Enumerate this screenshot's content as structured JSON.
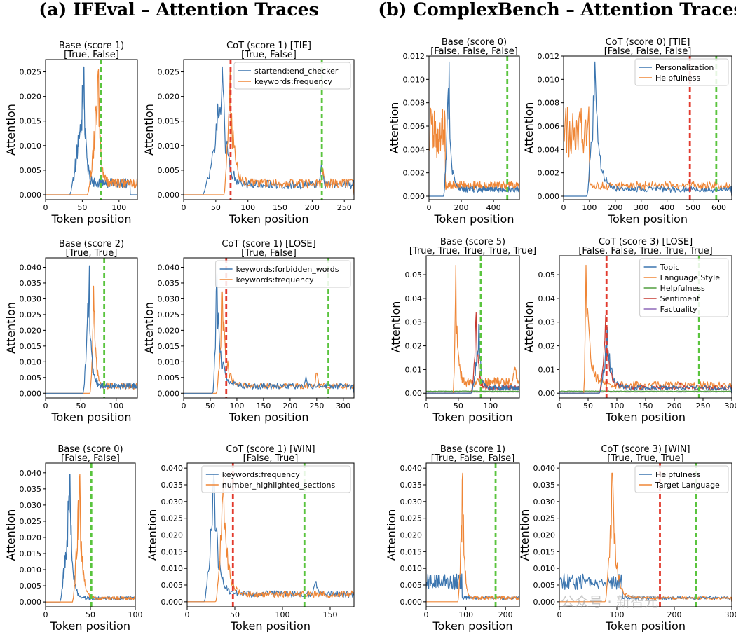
{
  "section_titles": [
    "(a) IFEval – Attention Traces",
    "(b) ComplexBench – Attention Traces"
  ],
  "watermark": "公众号 · 新智元",
  "colors": {
    "blue": "#3b75af",
    "orange": "#ef8636",
    "green_series": "#519e3e",
    "red_series": "#c53a32",
    "purple_series": "#8d69b8",
    "green_marker": "#5ac43e",
    "red_marker": "#e23a2e"
  },
  "chart_data": [
    {
      "type": "line",
      "title": "Base (score 1)",
      "subtitle": "[True, False]",
      "xlabel": "Token position",
      "ylabel": "Attention",
      "xlim": [
        0,
        125
      ],
      "ylim": [
        -0.001,
        0.0275
      ],
      "xticks": [
        0,
        50,
        100
      ],
      "yticks": [
        0,
        0.005,
        0.01,
        0.015,
        0.02,
        0.025
      ],
      "ydec": 3,
      "legend": [],
      "series": [
        {
          "name": "",
          "color": "blue",
          "start": 33,
          "end": 115,
          "shape": "spiky",
          "peak_x": 52,
          "peak": 0.026,
          "base": 0.002
        },
        {
          "name": "",
          "color": "orange",
          "start": 57,
          "end": 125,
          "shape": "spiky",
          "peak_x": 72,
          "peak": 0.0255,
          "base": 0.002
        }
      ],
      "vlines": [
        {
          "x": 75,
          "color": "green_marker"
        }
      ]
    },
    {
      "type": "line",
      "title": "CoT (score 1) [TIE]",
      "subtitle": "[True, False]",
      "xlabel": "Token position",
      "ylabel": "Attention",
      "xlim": [
        0,
        265
      ],
      "ylim": [
        -0.001,
        0.0275
      ],
      "xticks": [
        0,
        50,
        100,
        150,
        200,
        250
      ],
      "yticks": [
        0,
        0.005,
        0.01,
        0.015,
        0.02,
        0.025
      ],
      "ydec": 3,
      "legend": [
        "startend:end_checker",
        "keywords:frequency"
      ],
      "series": [
        {
          "name": "startend:end_checker",
          "color": "blue",
          "start": 30,
          "end": 265,
          "shape": "spiky",
          "peak_x": 60,
          "peak": 0.026,
          "base": 0.0018,
          "bumps": [
            [
              215,
              0.008
            ]
          ]
        },
        {
          "name": "keywords:frequency",
          "color": "orange",
          "start": 63,
          "end": 265,
          "shape": "spiky",
          "peak_x": 72,
          "peak": 0.026,
          "base": 0.002,
          "bumps": [
            [
              217,
              0.006
            ]
          ]
        }
      ],
      "vlines": [
        {
          "x": 73,
          "color": "red_marker"
        },
        {
          "x": 215,
          "color": "green_marker"
        }
      ]
    },
    {
      "type": "line",
      "title": "Base (score 0)",
      "subtitle": "[False, False, False]",
      "xlabel": "Token position",
      "ylabel": "Attention",
      "xlim": [
        0,
        560
      ],
      "ylim": [
        -0.0003,
        0.012
      ],
      "xticks": [
        0,
        200,
        400
      ],
      "yticks": [
        0,
        0.002,
        0.004,
        0.006,
        0.008,
        0.01,
        0.012
      ],
      "ydec": 3,
      "legend": [],
      "series": [
        {
          "name": "",
          "color": "orange",
          "start": 0,
          "end": 560,
          "shape": "plateau",
          "plateau": [
            0,
            100,
            0.0055
          ],
          "base": 0.0008
        },
        {
          "name": "",
          "color": "blue",
          "start": 90,
          "end": 560,
          "shape": "spiky",
          "peak_x": 125,
          "peak": 0.0115,
          "base": 0.0005
        }
      ],
      "vlines": [
        {
          "x": 485,
          "color": "green_marker"
        }
      ]
    },
    {
      "type": "line",
      "title": "CoT (score 0) [TIE]",
      "subtitle": "[False, False, False]",
      "xlabel": "Token position",
      "ylabel": "Attention",
      "xlim": [
        0,
        650
      ],
      "ylim": [
        -0.0003,
        0.012
      ],
      "xticks": [
        0,
        100,
        200,
        300,
        400,
        500,
        600
      ],
      "yticks": [
        0,
        0.002,
        0.004,
        0.006,
        0.008,
        0.01,
        0.012
      ],
      "ydec": 3,
      "legend": [
        "Personalization",
        "Helpfulness"
      ],
      "series": [
        {
          "name": "Helpfulness",
          "color": "orange",
          "start": 0,
          "end": 650,
          "shape": "plateau",
          "plateau": [
            0,
            100,
            0.0055
          ],
          "base": 0.0008
        },
        {
          "name": "Personalization",
          "color": "blue",
          "start": 90,
          "end": 650,
          "shape": "spiky",
          "peak_x": 120,
          "peak": 0.0115,
          "base": 0.0005
        }
      ],
      "vlines": [
        {
          "x": 488,
          "color": "red_marker"
        },
        {
          "x": 590,
          "color": "green_marker"
        }
      ]
    },
    {
      "type": "line",
      "title": "Base (score 2)",
      "subtitle": "[True, True]",
      "xlabel": "Token position",
      "ylabel": "Attention",
      "xlim": [
        0,
        130
      ],
      "ylim": [
        -0.0015,
        0.043
      ],
      "xticks": [
        0,
        50,
        100
      ],
      "yticks": [
        0,
        0.005,
        0.01,
        0.015,
        0.02,
        0.025,
        0.03,
        0.035,
        0.04
      ],
      "ydec": 3,
      "legend": [],
      "series": [
        {
          "name": "",
          "color": "orange",
          "start": 63,
          "end": 130,
          "shape": "spiky",
          "peak_x": 68,
          "peak": 0.034,
          "base": 0.002
        },
        {
          "name": "",
          "color": "blue",
          "start": 53,
          "end": 130,
          "shape": "spiky",
          "peak_x": 62,
          "peak": 0.0405,
          "base": 0.002
        }
      ],
      "vlines": [
        {
          "x": 83,
          "color": "green_marker"
        }
      ]
    },
    {
      "type": "line",
      "title": "CoT (score 1) [LOSE]",
      "subtitle": "[True, False]",
      "xlabel": "Token position",
      "ylabel": "Attention",
      "xlim": [
        0,
        320
      ],
      "ylim": [
        -0.0015,
        0.043
      ],
      "xticks": [
        0,
        50,
        100,
        150,
        200,
        250,
        300
      ],
      "yticks": [
        0,
        0.005,
        0.01,
        0.015,
        0.02,
        0.025,
        0.03,
        0.035,
        0.04
      ],
      "ydec": 3,
      "legend": [
        "keywords:forbidden_words",
        "keywords:frequency"
      ],
      "series": [
        {
          "name": "keywords:frequency",
          "color": "orange",
          "start": 62,
          "end": 320,
          "shape": "spiky",
          "peak_x": 72,
          "peak": 0.032,
          "base": 0.002,
          "bumps": [
            [
              250,
              0.009
            ]
          ]
        },
        {
          "name": "keywords:forbidden_words",
          "color": "blue",
          "start": 55,
          "end": 320,
          "shape": "spiky",
          "peak_x": 62,
          "peak": 0.038,
          "base": 0.002,
          "bumps": [
            [
              230,
              0.007
            ]
          ]
        }
      ],
      "vlines": [
        {
          "x": 80,
          "color": "red_marker"
        },
        {
          "x": 272,
          "color": "green_marker"
        }
      ]
    },
    {
      "type": "line",
      "title": "Base (score 5)",
      "subtitle": "[True, True, True, True, True]",
      "xlabel": "Token position",
      "ylabel": "Attention",
      "xlim": [
        0,
        145
      ],
      "ylim": [
        -0.002,
        0.058
      ],
      "xticks": [
        0,
        50,
        100
      ],
      "yticks": [
        0,
        0.01,
        0.02,
        0.03,
        0.04,
        0.05
      ],
      "ydec": 2,
      "legend": [],
      "series": [
        {
          "name": "",
          "color": "purple_series",
          "start": 0,
          "end": 145,
          "shape": "flat",
          "base": 0.0005
        },
        {
          "name": "",
          "color": "green_series",
          "start": 0,
          "end": 145,
          "shape": "flat",
          "base": 0.0008
        },
        {
          "name": "",
          "color": "orange",
          "start": 42,
          "end": 145,
          "shape": "spiky",
          "peak_x": 46,
          "peak": 0.054,
          "base": 0.004,
          "bumps": [
            [
              138,
              0.014
            ]
          ]
        },
        {
          "name": "",
          "color": "red_series",
          "start": 70,
          "end": 145,
          "shape": "spiky",
          "peak_x": 78,
          "peak": 0.034,
          "base": 0.002
        },
        {
          "name": "",
          "color": "blue",
          "start": 70,
          "end": 145,
          "shape": "spiky",
          "peak_x": 82,
          "peak": 0.029,
          "base": 0.002
        }
      ],
      "vlines": [
        {
          "x": 85,
          "color": "green_marker"
        }
      ]
    },
    {
      "type": "line",
      "title": "CoT (score 3) [LOSE]",
      "subtitle": "[False, False, True, True, True]",
      "xlabel": "Token position",
      "ylabel": "Attention",
      "xlim": [
        0,
        300
      ],
      "ylim": [
        -0.002,
        0.058
      ],
      "xticks": [
        0,
        50,
        100,
        150,
        200,
        250,
        300
      ],
      "yticks": [
        0,
        0.01,
        0.02,
        0.03,
        0.04,
        0.05
      ],
      "ydec": 2,
      "legend": [
        "Topic",
        "Language Style",
        "Helpfulness",
        "Sentiment",
        "Factuality"
      ],
      "series": [
        {
          "name": "Factuality",
          "color": "purple_series",
          "start": 0,
          "end": 300,
          "shape": "flat",
          "base": 0.0005
        },
        {
          "name": "Helpfulness",
          "color": "green_series",
          "start": 0,
          "end": 300,
          "shape": "flat",
          "base": 0.0008
        },
        {
          "name": "Language Style",
          "color": "orange",
          "start": 43,
          "end": 300,
          "shape": "spiky",
          "peak_x": 46,
          "peak": 0.054,
          "base": 0.003
        },
        {
          "name": "Sentiment",
          "color": "red_series",
          "start": 70,
          "end": 300,
          "shape": "spiky",
          "peak_x": 80,
          "peak": 0.033,
          "base": 0.002,
          "bumps": [
            [
              210,
              0.005
            ]
          ]
        },
        {
          "name": "Topic",
          "color": "blue",
          "start": 70,
          "end": 300,
          "shape": "spiky",
          "peak_x": 83,
          "peak": 0.028,
          "base": 0.002
        }
      ],
      "vlines": [
        {
          "x": 82,
          "color": "red_marker"
        },
        {
          "x": 243,
          "color": "green_marker"
        }
      ]
    },
    {
      "type": "line",
      "title": "Base (score 0)",
      "subtitle": "[False, False]",
      "xlabel": "Token position",
      "ylabel": "Attention",
      "xlim": [
        0,
        100
      ],
      "ylim": [
        -0.0015,
        0.043
      ],
      "xticks": [
        0,
        50,
        100
      ],
      "yticks": [
        0,
        0.005,
        0.01,
        0.015,
        0.02,
        0.025,
        0.03,
        0.035,
        0.04
      ],
      "ydec": 3,
      "legend": [],
      "series": [
        {
          "name": "",
          "color": "blue",
          "start": 16,
          "end": 100,
          "shape": "spiky",
          "peak_x": 27,
          "peak": 0.0395,
          "base": 0.001
        },
        {
          "name": "",
          "color": "orange",
          "start": 30,
          "end": 100,
          "shape": "spiky",
          "peak_x": 38,
          "peak": 0.0395,
          "base": 0.001
        }
      ],
      "vlines": [
        {
          "x": 51,
          "color": "green_marker"
        }
      ]
    },
    {
      "type": "line",
      "title": "CoT (score 1) [WIN]",
      "subtitle": "[False, True]",
      "xlabel": "Token position",
      "ylabel": "Attention",
      "xlim": [
        0,
        175
      ],
      "ylim": [
        -0.0015,
        0.0415
      ],
      "xticks": [
        0,
        50,
        100,
        150
      ],
      "yticks": [
        0,
        0.005,
        0.01,
        0.015,
        0.02,
        0.025,
        0.03,
        0.035,
        0.04
      ],
      "ydec": 3,
      "legend": [
        "keywords:frequency",
        "number_highlighted_sections"
      ],
      "series": [
        {
          "name": "keywords:frequency",
          "color": "blue",
          "start": 18,
          "end": 175,
          "shape": "spiky",
          "peak_x": 28,
          "peak": 0.038,
          "base": 0.002,
          "bumps": [
            [
              135,
              0.007
            ]
          ]
        },
        {
          "name": "number_highlighted_sections",
          "color": "orange",
          "start": 30,
          "end": 175,
          "shape": "spiky",
          "peak_x": 38,
          "peak": 0.038,
          "base": 0.002
        }
      ],
      "vlines": [
        {
          "x": 48,
          "color": "red_marker"
        },
        {
          "x": 123,
          "color": "green_marker"
        }
      ]
    },
    {
      "type": "line",
      "title": "Base (score 1)",
      "subtitle": "[True, False, False]",
      "xlabel": "Token position",
      "ylabel": "Attention",
      "xlim": [
        0,
        235
      ],
      "ylim": [
        -0.0015,
        0.0415
      ],
      "xticks": [
        0,
        100,
        200
      ],
      "yticks": [
        0,
        0.005,
        0.01,
        0.015,
        0.02,
        0.025,
        0.03,
        0.035,
        0.04
      ],
      "ydec": 3,
      "legend": [],
      "series": [
        {
          "name": "",
          "color": "blue",
          "start": 0,
          "end": 235,
          "shape": "plateau",
          "plateau": [
            0,
            90,
            0.006
          ],
          "base": 0.001
        },
        {
          "name": "",
          "color": "orange",
          "start": 80,
          "end": 235,
          "shape": "spiky",
          "peak_x": 92,
          "peak": 0.0385,
          "base": 0.001
        }
      ],
      "vlines": [
        {
          "x": 175,
          "color": "green_marker"
        }
      ]
    },
    {
      "type": "line",
      "title": "CoT (score 3) [WIN]",
      "subtitle": "[True, True, True]",
      "xlabel": "Token position",
      "ylabel": "Attention",
      "xlim": [
        0,
        300
      ],
      "ylim": [
        -0.0015,
        0.0415
      ],
      "xticks": [
        0,
        100,
        200,
        300
      ],
      "yticks": [
        0,
        0.005,
        0.01,
        0.015,
        0.02,
        0.025,
        0.03,
        0.035,
        0.04
      ],
      "ydec": 3,
      "legend": [
        "Helpfulness",
        "Target Language"
      ],
      "series": [
        {
          "name": "Helpfulness",
          "color": "blue",
          "start": 0,
          "end": 300,
          "shape": "plateau",
          "plateau": [
            0,
            110,
            0.006
          ],
          "base": 0.001
        },
        {
          "name": "Target Language",
          "color": "orange",
          "start": 80,
          "end": 300,
          "shape": "spiky",
          "peak_x": 92,
          "peak": 0.0385,
          "base": 0.001
        }
      ],
      "vlines": [
        {
          "x": 175,
          "color": "red_marker"
        },
        {
          "x": 238,
          "color": "green_marker"
        }
      ]
    }
  ]
}
